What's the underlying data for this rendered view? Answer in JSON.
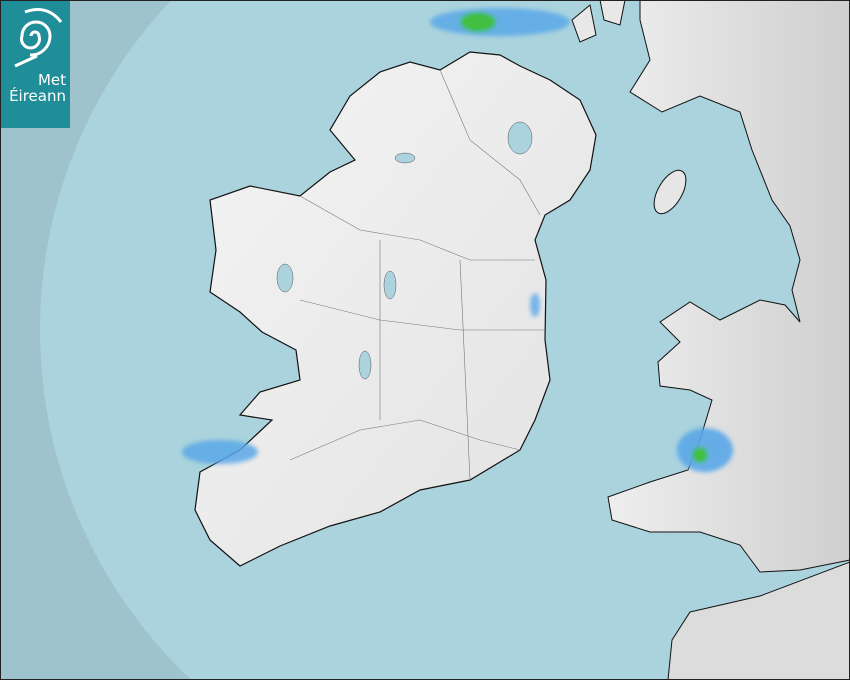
{
  "logo": {
    "line1": "Met",
    "line2": "Éireann"
  },
  "colors": {
    "sea_outside_coverage": "#9fc3cc",
    "sea_radar_coverage": "#aad3de",
    "land": "#f0f0f0",
    "rain_light": "#5aa7e8",
    "rain_moderate": "#3fbf3f",
    "logo_bg": "#1f8e98"
  }
}
